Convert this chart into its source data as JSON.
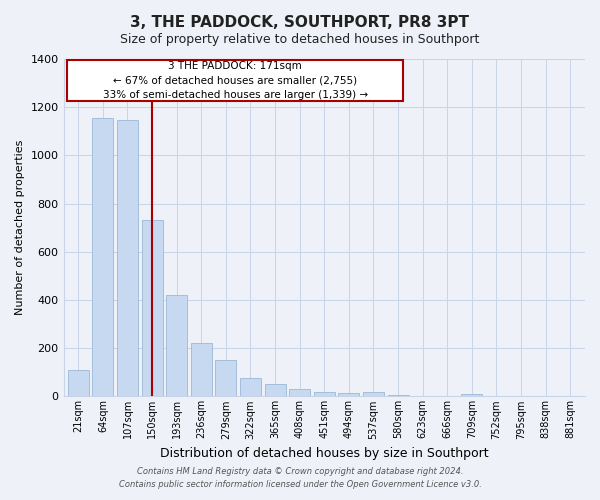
{
  "title": "3, THE PADDOCK, SOUTHPORT, PR8 3PT",
  "subtitle": "Size of property relative to detached houses in Southport",
  "xlabel": "Distribution of detached houses by size in Southport",
  "ylabel": "Number of detached properties",
  "categories": [
    "21sqm",
    "64sqm",
    "107sqm",
    "150sqm",
    "193sqm",
    "236sqm",
    "279sqm",
    "322sqm",
    "365sqm",
    "408sqm",
    "451sqm",
    "494sqm",
    "537sqm",
    "580sqm",
    "623sqm",
    "666sqm",
    "709sqm",
    "752sqm",
    "795sqm",
    "838sqm",
    "881sqm"
  ],
  "values": [
    110,
    1155,
    1148,
    730,
    420,
    220,
    150,
    75,
    50,
    32,
    20,
    15,
    20,
    5,
    3,
    0,
    8,
    0,
    2,
    0,
    0
  ],
  "bar_color": "#c6d9f1",
  "bar_edge_color": "#9ab8d8",
  "marker_bar_index": 3,
  "marker_color": "#aa0000",
  "ylim": [
    0,
    1400
  ],
  "yticks": [
    0,
    200,
    400,
    600,
    800,
    1000,
    1200,
    1400
  ],
  "annotation_title": "3 THE PADDOCK: 171sqm",
  "annotation_line1": "← 67% of detached houses are smaller (2,755)",
  "annotation_line2": "33% of semi-detached houses are larger (1,339) →",
  "footer1": "Contains HM Land Registry data © Crown copyright and database right 2024.",
  "footer2": "Contains public sector information licensed under the Open Government Licence v3.0.",
  "bg_color": "#eef2f8",
  "plot_bg_color": "#eef2f8",
  "grid_color": "#c8d4e8",
  "title_fontsize": 11,
  "subtitle_fontsize": 9,
  "ylabel_fontsize": 8,
  "xlabel_fontsize": 9
}
